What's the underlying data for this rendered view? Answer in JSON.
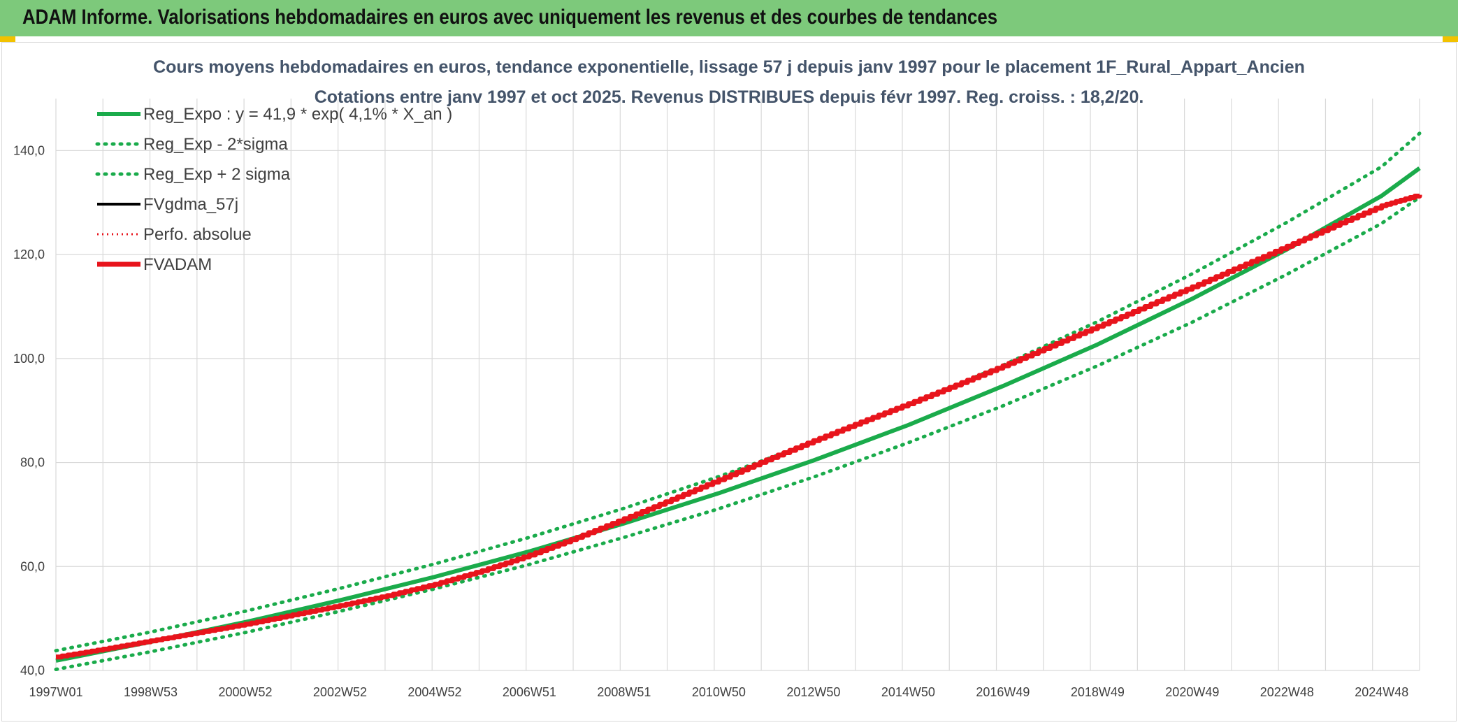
{
  "header": {
    "title": "ADAM Informe. Valorisations hebdomadaires en euros avec uniquement les revenus et des courbes de tendances"
  },
  "colors": {
    "banner": "#7dc97b",
    "accent": "#f2c200",
    "regression": "#1aab4b",
    "band": "#1aab4b",
    "fvgdma": "#000000",
    "fvadam": "#e8141c",
    "perfo": "#e8141c",
    "grid": "#d9d9d9"
  },
  "chart_data": {
    "type": "line",
    "title": "Cours moyens hebdomadaires en euros, tendance exponentielle, lissage 57 j depuis janv 1997 pour le placement 1F_Rural_Appart_Ancien",
    "subtitle": "Cotations entre janv 1997 et oct 2025. Revenus DISTRIBUES depuis févr 1997. Reg. croiss. : 18,2/20.",
    "xlabel": "",
    "ylabel": "",
    "x_ticks": [
      "1997W01",
      "1998W53",
      "2000W52",
      "2002W52",
      "2004W52",
      "2006W51",
      "2008W51",
      "2010W50",
      "2012W50",
      "2014W50",
      "2016W49",
      "2018W49",
      "2020W49",
      "2022W48",
      "2024W48"
    ],
    "x_tick_years": [
      1997.0,
      1999.0,
      2001.0,
      2003.0,
      2005.0,
      2007.0,
      2009.0,
      2011.0,
      2013.0,
      2015.0,
      2017.0,
      2019.0,
      2021.0,
      2023.0,
      2025.0
    ],
    "xlim": [
      1997.0,
      2025.8
    ],
    "ylim": [
      40,
      150
    ],
    "y_ticks": [
      "40,0",
      "60,0",
      "80,0",
      "100,0",
      "120,0",
      "140,0"
    ],
    "y_tick_values": [
      40,
      60,
      80,
      100,
      120,
      140
    ],
    "grid": true,
    "legend_position": "top-left",
    "legend": [
      "Reg_Expo : y = 41,9 * exp( 4,1% *  X_an )",
      "Reg_Exp - 2*sigma",
      "Reg_Exp + 2 sigma",
      "FVgdma_57j",
      "Perfo. absolue",
      "FVADAM"
    ],
    "series": [
      {
        "name": "Reg_Expo : y = 41,9 * exp( 4,1% *  X_an )",
        "x": [
          1997.0,
          1999.0,
          2001.0,
          2003.0,
          2005.0,
          2007.0,
          2009.0,
          2011.0,
          2013.0,
          2015.0,
          2017.0,
          2019.0,
          2021.0,
          2023.0,
          2025.0,
          2025.8
        ],
        "y": [
          41.9,
          45.5,
          49.3,
          53.5,
          58.0,
          62.9,
          68.3,
          74.1,
          80.4,
          87.2,
          94.7,
          102.7,
          111.5,
          121.0,
          131.3,
          136.6
        ]
      },
      {
        "name": "Reg_Exp - 2*sigma",
        "x": [
          1997.0,
          1999.0,
          2001.0,
          2003.0,
          2005.0,
          2007.0,
          2009.0,
          2011.0,
          2013.0,
          2015.0,
          2017.0,
          2019.0,
          2021.0,
          2023.0,
          2025.0,
          2025.8
        ],
        "y": [
          40.2,
          43.6,
          47.3,
          51.4,
          55.7,
          60.4,
          65.6,
          71.1,
          77.2,
          83.8,
          90.9,
          98.6,
          107.0,
          116.2,
          126.0,
          131.0
        ]
      },
      {
        "name": "Reg_Exp + 2 sigma",
        "x": [
          1997.0,
          1999.0,
          2001.0,
          2003.0,
          2005.0,
          2007.0,
          2009.0,
          2011.0,
          2013.0,
          2015.0,
          2017.0,
          2019.0,
          2021.0,
          2023.0,
          2025.0,
          2025.8
        ],
        "y": [
          43.8,
          47.4,
          51.4,
          55.8,
          60.5,
          65.6,
          71.2,
          77.3,
          83.9,
          91.0,
          98.7,
          107.1,
          116.3,
          126.2,
          136.9,
          143.3
        ]
      },
      {
        "name": "FVgdma_57j",
        "x": [],
        "y": []
      },
      {
        "name": "Perfo. absolue",
        "x": [],
        "y": []
      },
      {
        "name": "FVADAM",
        "x": [
          1997.0,
          1998.0,
          1999.0,
          2000.0,
          2001.0,
          2002.0,
          2003.0,
          2004.0,
          2005.0,
          2006.0,
          2007.0,
          2008.0,
          2009.0,
          2010.0,
          2011.0,
          2012.0,
          2013.0,
          2014.0,
          2015.0,
          2016.0,
          2017.0,
          2018.0,
          2019.0,
          2020.0,
          2021.0,
          2022.0,
          2023.0,
          2024.0,
          2025.0,
          2025.8
        ],
        "y": [
          42.6,
          44.1,
          45.7,
          47.3,
          48.9,
          50.7,
          52.5,
          54.4,
          56.6,
          59.2,
          62.2,
          65.6,
          69.2,
          72.9,
          76.7,
          80.5,
          84.2,
          87.8,
          91.3,
          94.9,
          98.6,
          102.4,
          106.2,
          110.0,
          113.8,
          117.7,
          121.6,
          125.6,
          129.4,
          131.5
        ]
      }
    ]
  }
}
